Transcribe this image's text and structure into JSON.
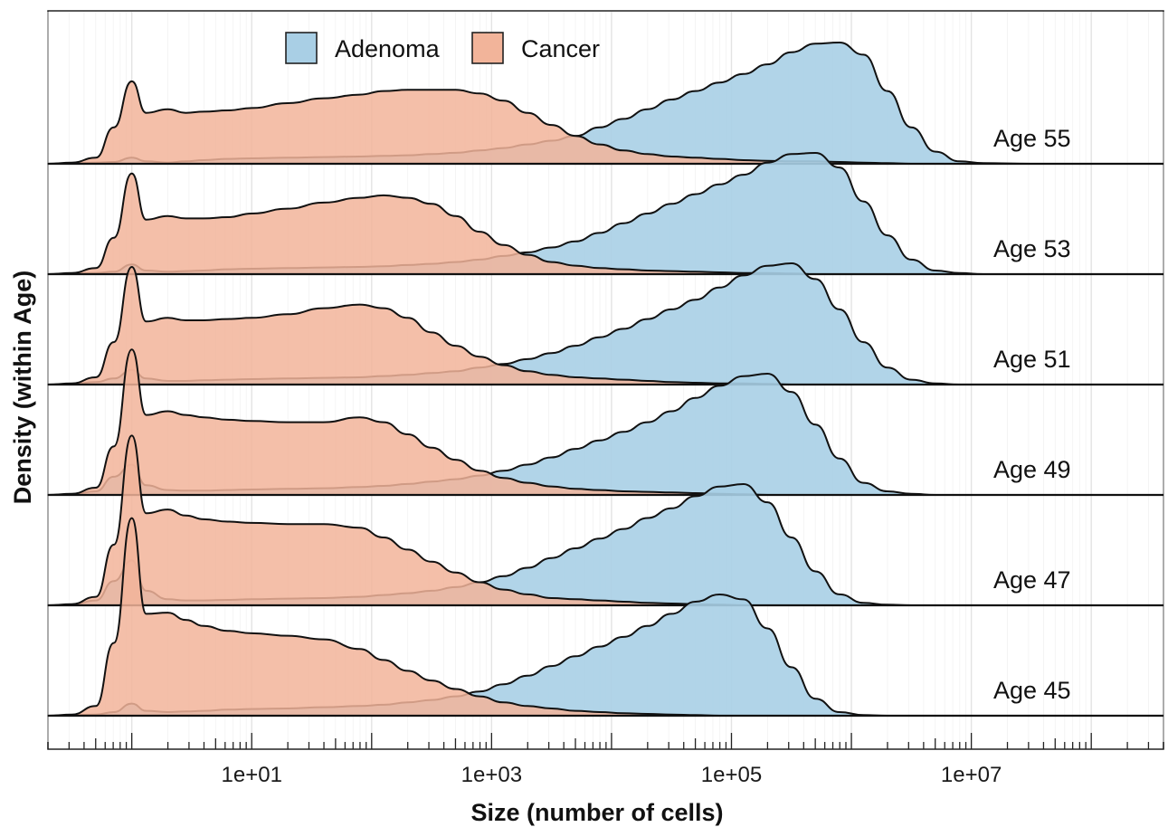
{
  "chart_data": {
    "type": "area",
    "subtype": "ridgeline-density",
    "xlabel": "Size (number of cells)",
    "ylabel": "Density (within Age)",
    "x_scale": "log10",
    "xlim": [
      0.2,
      400000000
    ],
    "x_tick_values": [
      10,
      1000,
      100000,
      10000000
    ],
    "x_tick_labels": [
      "1e+01",
      "1e+03",
      "1e+05",
      "1e+07"
    ],
    "grid": true,
    "legend_position": "top-left",
    "legend": [
      {
        "name": "Adenoma",
        "color": "#a9cfe5"
      },
      {
        "name": "Cancer",
        "color": "#f2b49a"
      }
    ],
    "series_colors": {
      "adenoma": "#a9cfe5",
      "cancer": "#f2b49a"
    },
    "x_log10_points": [
      -0.7,
      -0.5,
      -0.3,
      -0.15,
      0,
      0.12,
      0.3,
      0.45,
      0.6,
      0.8,
      1,
      1.3,
      1.6,
      1.9,
      2.1,
      2.3,
      2.5,
      2.7,
      2.9,
      3.1,
      3.3,
      3.5,
      3.7,
      3.9,
      4.1,
      4.3,
      4.5,
      4.7,
      4.9,
      5.1,
      5.3,
      5.5,
      5.7,
      5.9,
      6.1,
      6.3,
      6.5,
      6.7,
      6.9,
      7.1,
      7.5,
      8.0,
      8.6
    ],
    "ridges": [
      {
        "age_label": "Age 55",
        "adenoma_density": [
          0,
          0.005,
          0.01,
          0.015,
          0.05,
          0.02,
          0.01,
          0.02,
          0.03,
          0.04,
          0.045,
          0.05,
          0.055,
          0.06,
          0.065,
          0.07,
          0.08,
          0.09,
          0.11,
          0.13,
          0.16,
          0.19,
          0.23,
          0.3,
          0.37,
          0.45,
          0.53,
          0.6,
          0.67,
          0.74,
          0.82,
          0.92,
          0.99,
          1.0,
          0.9,
          0.6,
          0.3,
          0.1,
          0.02,
          0.005,
          0,
          0,
          0
        ],
        "cancer_density": [
          0,
          0.01,
          0.05,
          0.3,
          0.68,
          0.42,
          0.45,
          0.42,
          0.43,
          0.44,
          0.46,
          0.5,
          0.54,
          0.57,
          0.6,
          0.61,
          0.61,
          0.61,
          0.58,
          0.52,
          0.42,
          0.32,
          0.23,
          0.16,
          0.11,
          0.08,
          0.06,
          0.05,
          0.04,
          0.03,
          0.025,
          0.02,
          0.02,
          0.015,
          0.01,
          0.005,
          0,
          0,
          0,
          0,
          0,
          0,
          0
        ]
      },
      {
        "age_label": "Age 53",
        "adenoma_density": [
          0,
          0.005,
          0.01,
          0.02,
          0.08,
          0.03,
          0.02,
          0.025,
          0.03,
          0.04,
          0.045,
          0.05,
          0.055,
          0.06,
          0.065,
          0.075,
          0.085,
          0.1,
          0.12,
          0.15,
          0.18,
          0.22,
          0.27,
          0.34,
          0.42,
          0.5,
          0.58,
          0.66,
          0.74,
          0.82,
          0.92,
          0.99,
          1.0,
          0.88,
          0.6,
          0.32,
          0.12,
          0.03,
          0.01,
          0,
          0,
          0,
          0
        ],
        "cancer_density": [
          0,
          0.01,
          0.05,
          0.3,
          0.83,
          0.45,
          0.48,
          0.46,
          0.46,
          0.47,
          0.5,
          0.54,
          0.59,
          0.63,
          0.65,
          0.63,
          0.58,
          0.48,
          0.35,
          0.24,
          0.16,
          0.1,
          0.07,
          0.05,
          0.04,
          0.03,
          0.025,
          0.02,
          0.015,
          0.01,
          0.01,
          0.005,
          0,
          0,
          0,
          0,
          0,
          0,
          0,
          0,
          0,
          0,
          0
        ]
      },
      {
        "age_label": "Age 51",
        "adenoma_density": [
          0,
          0.005,
          0.02,
          0.05,
          0.12,
          0.05,
          0.03,
          0.03,
          0.035,
          0.04,
          0.045,
          0.05,
          0.055,
          0.06,
          0.07,
          0.08,
          0.095,
          0.11,
          0.14,
          0.17,
          0.21,
          0.26,
          0.32,
          0.39,
          0.46,
          0.54,
          0.62,
          0.7,
          0.8,
          0.9,
          0.98,
          1.0,
          0.87,
          0.62,
          0.35,
          0.14,
          0.04,
          0.01,
          0,
          0,
          0,
          0,
          0
        ],
        "cancer_density": [
          0,
          0.01,
          0.06,
          0.35,
          0.97,
          0.52,
          0.55,
          0.53,
          0.53,
          0.54,
          0.55,
          0.58,
          0.63,
          0.66,
          0.63,
          0.55,
          0.43,
          0.32,
          0.23,
          0.16,
          0.11,
          0.08,
          0.06,
          0.05,
          0.04,
          0.03,
          0.02,
          0.015,
          0.01,
          0.01,
          0.005,
          0,
          0,
          0,
          0,
          0,
          0,
          0,
          0,
          0,
          0,
          0,
          0
        ]
      },
      {
        "age_label": "Age 49",
        "adenoma_density": [
          0,
          0.005,
          0.03,
          0.15,
          0.25,
          0.08,
          0.04,
          0.035,
          0.035,
          0.04,
          0.045,
          0.05,
          0.055,
          0.065,
          0.075,
          0.09,
          0.11,
          0.13,
          0.16,
          0.2,
          0.25,
          0.31,
          0.38,
          0.45,
          0.52,
          0.6,
          0.69,
          0.8,
          0.9,
          0.98,
          1.0,
          0.85,
          0.58,
          0.3,
          0.1,
          0.03,
          0.01,
          0,
          0,
          0,
          0,
          0,
          0
        ],
        "cancer_density": [
          0,
          0.01,
          0.06,
          0.4,
          1.2,
          0.66,
          0.69,
          0.66,
          0.64,
          0.62,
          0.61,
          0.6,
          0.6,
          0.64,
          0.6,
          0.5,
          0.39,
          0.29,
          0.2,
          0.14,
          0.1,
          0.07,
          0.05,
          0.04,
          0.03,
          0.025,
          0.02,
          0.015,
          0.01,
          0.005,
          0,
          0,
          0,
          0,
          0,
          0,
          0,
          0,
          0,
          0,
          0,
          0,
          0
        ]
      },
      {
        "age_label": "Age 47",
        "adenoma_density": [
          0,
          0.005,
          0.04,
          0.2,
          0.37,
          0.12,
          0.05,
          0.04,
          0.04,
          0.045,
          0.05,
          0.055,
          0.06,
          0.07,
          0.085,
          0.1,
          0.12,
          0.15,
          0.19,
          0.24,
          0.31,
          0.39,
          0.47,
          0.55,
          0.63,
          0.72,
          0.8,
          0.9,
          0.98,
          1.0,
          0.85,
          0.56,
          0.28,
          0.09,
          0.02,
          0.005,
          0,
          0,
          0,
          0,
          0,
          0,
          0
        ],
        "cancer_density": [
          0,
          0.01,
          0.07,
          0.5,
          1.4,
          0.76,
          0.79,
          0.74,
          0.71,
          0.69,
          0.68,
          0.67,
          0.67,
          0.64,
          0.56,
          0.46,
          0.36,
          0.27,
          0.19,
          0.13,
          0.09,
          0.06,
          0.05,
          0.04,
          0.03,
          0.02,
          0.015,
          0.01,
          0.005,
          0,
          0,
          0,
          0,
          0,
          0,
          0,
          0,
          0,
          0,
          0,
          0,
          0,
          0
        ]
      },
      {
        "age_label": "Age 45",
        "adenoma_density": [
          0,
          0.005,
          0.01,
          0.03,
          0.1,
          0.04,
          0.03,
          0.035,
          0.04,
          0.05,
          0.055,
          0.06,
          0.07,
          0.08,
          0.09,
          0.11,
          0.13,
          0.16,
          0.2,
          0.26,
          0.33,
          0.41,
          0.49,
          0.57,
          0.65,
          0.74,
          0.84,
          0.94,
          1.0,
          0.96,
          0.72,
          0.4,
          0.14,
          0.03,
          0.005,
          0,
          0,
          0,
          0,
          0,
          0,
          0,
          0
        ],
        "cancer_density": [
          0,
          0.01,
          0.08,
          0.6,
          1.63,
          0.84,
          0.85,
          0.79,
          0.74,
          0.7,
          0.68,
          0.66,
          0.63,
          0.55,
          0.46,
          0.37,
          0.29,
          0.22,
          0.16,
          0.11,
          0.08,
          0.06,
          0.04,
          0.03,
          0.02,
          0.015,
          0.01,
          0.005,
          0,
          0,
          0,
          0,
          0,
          0,
          0,
          0,
          0,
          0,
          0,
          0,
          0,
          0,
          0
        ]
      }
    ]
  }
}
